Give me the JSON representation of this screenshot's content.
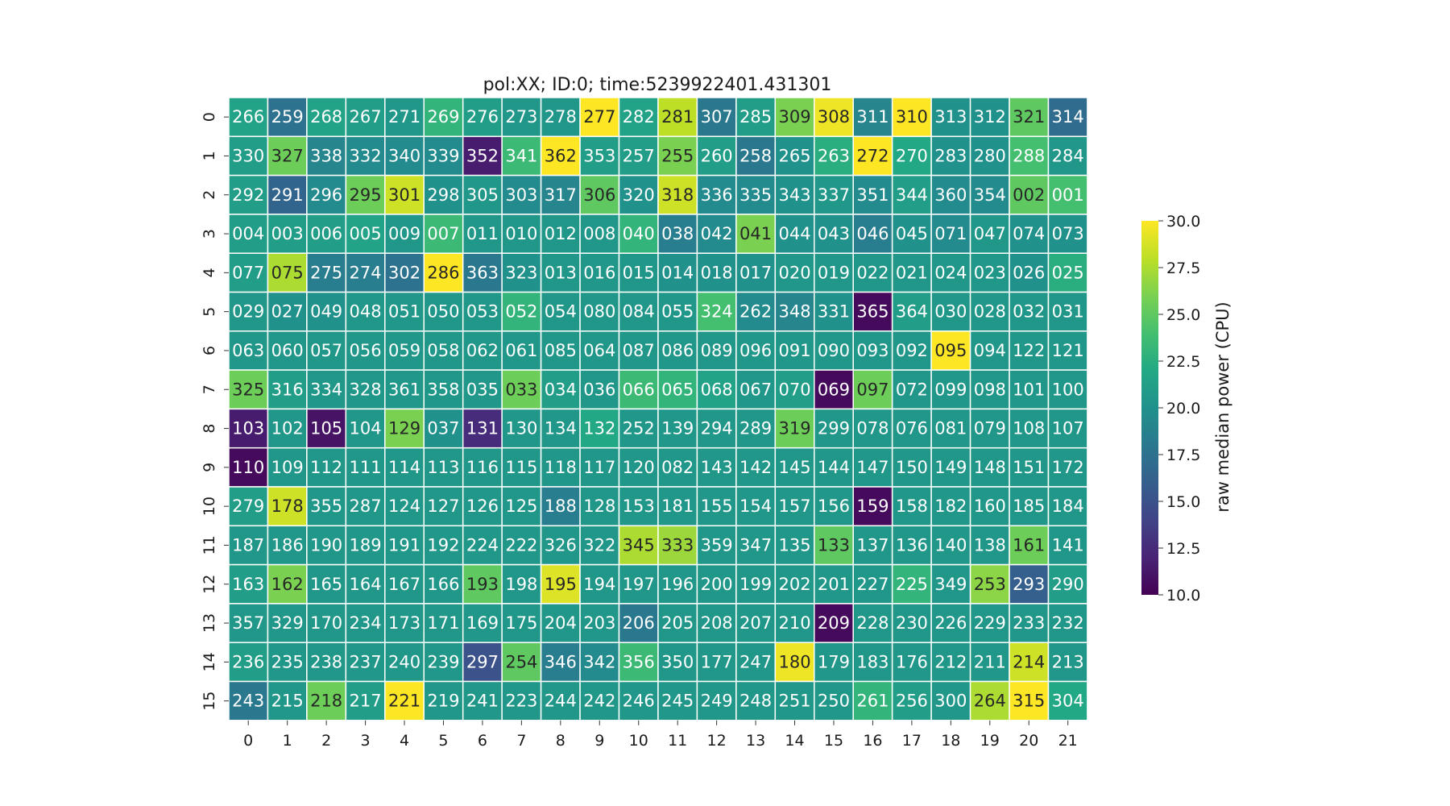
{
  "chart_data": {
    "type": "heatmap",
    "title": "pol:XX; ID:0; time:5239922401.431301",
    "colorbar_label": "raw median power (CPU)",
    "colorbar_ticks": [
      "10.0",
      "12.5",
      "15.0",
      "17.5",
      "20.0",
      "22.5",
      "25.0",
      "27.5",
      "30.0"
    ],
    "vmin": 10.0,
    "vmax": 30.0,
    "colormap": "viridis",
    "x_tick_labels": [
      "0",
      "1",
      "2",
      "3",
      "4",
      "5",
      "6",
      "7",
      "8",
      "9",
      "10",
      "11",
      "12",
      "13",
      "14",
      "15",
      "16",
      "17",
      "18",
      "19",
      "20",
      "21"
    ],
    "y_tick_labels": [
      "0",
      "1",
      "2",
      "3",
      "4",
      "5",
      "6",
      "7",
      "8",
      "9",
      "10",
      "11",
      "12",
      "13",
      "14",
      "15"
    ],
    "annotations": [
      [
        "266",
        "259",
        "268",
        "267",
        "271",
        "269",
        "276",
        "273",
        "278",
        "277",
        "282",
        "281",
        "307",
        "285",
        "309",
        "308",
        "311",
        "310",
        "313",
        "312",
        "321",
        "314"
      ],
      [
        "330",
        "327",
        "338",
        "332",
        "340",
        "339",
        "352",
        "341",
        "362",
        "353",
        "257",
        "255",
        "260",
        "258",
        "265",
        "263",
        "272",
        "270",
        "283",
        "280",
        "288",
        "284"
      ],
      [
        "292",
        "291",
        "296",
        "295",
        "301",
        "298",
        "305",
        "303",
        "317",
        "306",
        "320",
        "318",
        "336",
        "335",
        "343",
        "337",
        "351",
        "344",
        "360",
        "354",
        "002",
        "001"
      ],
      [
        "004",
        "003",
        "006",
        "005",
        "009",
        "007",
        "011",
        "010",
        "012",
        "008",
        "040",
        "038",
        "042",
        "041",
        "044",
        "043",
        "046",
        "045",
        "071",
        "047",
        "074",
        "073"
      ],
      [
        "077",
        "075",
        "275",
        "274",
        "302",
        "286",
        "363",
        "323",
        "013",
        "016",
        "015",
        "014",
        "018",
        "017",
        "020",
        "019",
        "022",
        "021",
        "024",
        "023",
        "026",
        "025"
      ],
      [
        "029",
        "027",
        "049",
        "048",
        "051",
        "050",
        "053",
        "052",
        "054",
        "080",
        "084",
        "055",
        "324",
        "262",
        "348",
        "331",
        "365",
        "364",
        "030",
        "028",
        "032",
        "031"
      ],
      [
        "063",
        "060",
        "057",
        "056",
        "059",
        "058",
        "062",
        "061",
        "085",
        "064",
        "087",
        "086",
        "089",
        "096",
        "091",
        "090",
        "093",
        "092",
        "095",
        "094",
        "122",
        "121"
      ],
      [
        "325",
        "316",
        "334",
        "328",
        "361",
        "358",
        "035",
        "033",
        "034",
        "036",
        "066",
        "065",
        "068",
        "067",
        "070",
        "069",
        "097",
        "072",
        "099",
        "098",
        "101",
        "100"
      ],
      [
        "103",
        "102",
        "105",
        "104",
        "129",
        "037",
        "131",
        "130",
        "134",
        "132",
        "252",
        "139",
        "294",
        "289",
        "319",
        "299",
        "078",
        "076",
        "081",
        "079",
        "108",
        "107"
      ],
      [
        "110",
        "109",
        "112",
        "111",
        "114",
        "113",
        "116",
        "115",
        "118",
        "117",
        "120",
        "082",
        "143",
        "142",
        "145",
        "144",
        "147",
        "150",
        "149",
        "148",
        "151",
        "172"
      ],
      [
        "279",
        "178",
        "355",
        "287",
        "124",
        "127",
        "126",
        "125",
        "188",
        "128",
        "153",
        "181",
        "155",
        "154",
        "157",
        "156",
        "159",
        "158",
        "182",
        "160",
        "185",
        "184"
      ],
      [
        "187",
        "186",
        "190",
        "189",
        "191",
        "192",
        "224",
        "222",
        "326",
        "322",
        "345",
        "333",
        "359",
        "347",
        "135",
        "133",
        "137",
        "136",
        "140",
        "138",
        "161",
        "141"
      ],
      [
        "163",
        "162",
        "165",
        "164",
        "167",
        "166",
        "193",
        "198",
        "195",
        "194",
        "197",
        "196",
        "200",
        "199",
        "202",
        "201",
        "227",
        "225",
        "349",
        "253",
        "293",
        "290"
      ],
      [
        "357",
        "329",
        "170",
        "234",
        "173",
        "171",
        "169",
        "175",
        "204",
        "203",
        "206",
        "205",
        "208",
        "207",
        "210",
        "209",
        "228",
        "230",
        "226",
        "229",
        "233",
        "232"
      ],
      [
        "236",
        "235",
        "238",
        "237",
        "240",
        "239",
        "297",
        "254",
        "346",
        "342",
        "356",
        "350",
        "177",
        "247",
        "180",
        "179",
        "183",
        "176",
        "212",
        "211",
        "214",
        "213"
      ],
      [
        "243",
        "215",
        "218",
        "217",
        "221",
        "219",
        "241",
        "223",
        "244",
        "242",
        "246",
        "245",
        "249",
        "248",
        "251",
        "250",
        "261",
        "256",
        "300",
        "264",
        "315",
        "304"
      ]
    ],
    "values": [
      [
        21.5,
        17.5,
        21.5,
        21.0,
        20.5,
        23.0,
        21.0,
        20.5,
        20.5,
        30.0,
        21.5,
        28.0,
        18.0,
        21.0,
        26.0,
        29.5,
        19.0,
        30.0,
        20.0,
        20.0,
        25.0,
        17.0
      ],
      [
        21.0,
        25.5,
        19.0,
        19.5,
        19.5,
        19.5,
        11.5,
        23.5,
        30.0,
        21.0,
        21.0,
        26.0,
        21.0,
        18.0,
        20.0,
        22.5,
        30.0,
        22.0,
        20.0,
        20.0,
        24.0,
        20.5
      ],
      [
        21.0,
        16.5,
        19.5,
        25.5,
        28.5,
        20.0,
        20.5,
        19.5,
        19.0,
        25.0,
        20.0,
        28.5,
        19.5,
        19.5,
        20.0,
        20.5,
        19.5,
        21.0,
        19.5,
        19.5,
        25.0,
        24.0
      ],
      [
        21.0,
        21.0,
        21.0,
        21.5,
        20.5,
        23.5,
        20.5,
        20.5,
        20.5,
        20.5,
        23.0,
        18.5,
        19.5,
        26.0,
        20.0,
        20.0,
        18.5,
        20.0,
        19.5,
        20.5,
        20.0,
        20.0
      ],
      [
        21.0,
        27.5,
        18.5,
        18.5,
        17.5,
        30.0,
        18.0,
        20.0,
        20.5,
        20.5,
        20.5,
        20.0,
        20.0,
        20.0,
        20.5,
        20.5,
        20.5,
        20.5,
        20.5,
        20.5,
        20.0,
        22.5
      ],
      [
        20.5,
        20.0,
        20.0,
        20.5,
        20.5,
        20.5,
        20.5,
        23.0,
        20.5,
        20.5,
        20.5,
        20.5,
        24.0,
        19.5,
        19.0,
        20.0,
        10.5,
        21.0,
        20.5,
        20.5,
        20.5,
        20.5
      ],
      [
        20.5,
        20.5,
        20.5,
        20.5,
        20.5,
        20.5,
        20.5,
        20.5,
        20.5,
        20.5,
        20.5,
        20.5,
        20.5,
        20.5,
        20.5,
        20.5,
        20.5,
        20.5,
        30.0,
        20.5,
        20.5,
        20.5
      ],
      [
        25.5,
        21.0,
        20.5,
        20.5,
        20.5,
        20.5,
        20.5,
        25.5,
        21.0,
        20.5,
        23.5,
        23.0,
        21.5,
        20.5,
        21.0,
        10.5,
        25.5,
        20.5,
        20.5,
        20.5,
        20.5,
        20.5
      ],
      [
        11.5,
        20.5,
        11.0,
        20.5,
        26.0,
        20.0,
        12.5,
        20.5,
        20.5,
        22.0,
        20.5,
        20.5,
        20.5,
        20.5,
        25.5,
        20.5,
        20.5,
        20.5,
        20.5,
        20.5,
        20.5,
        20.5
      ],
      [
        10.5,
        20.5,
        20.5,
        20.5,
        20.5,
        20.5,
        20.5,
        20.5,
        20.5,
        20.5,
        20.5,
        20.5,
        20.5,
        20.5,
        20.5,
        20.5,
        20.5,
        20.5,
        20.5,
        20.5,
        20.5,
        20.5
      ],
      [
        21.0,
        28.5,
        20.5,
        20.5,
        20.5,
        20.5,
        20.5,
        20.5,
        18.5,
        20.5,
        20.5,
        20.5,
        20.5,
        20.5,
        20.5,
        20.5,
        10.5,
        20.5,
        20.5,
        20.5,
        20.5,
        20.5
      ],
      [
        20.5,
        20.5,
        20.5,
        20.5,
        20.5,
        20.5,
        20.5,
        20.5,
        20.5,
        20.5,
        27.5,
        27.0,
        20.5,
        20.5,
        20.5,
        25.0,
        20.5,
        20.5,
        20.5,
        20.5,
        25.5,
        20.5
      ],
      [
        21.0,
        26.0,
        20.5,
        20.5,
        20.5,
        20.5,
        25.0,
        20.5,
        29.0,
        20.5,
        20.5,
        20.5,
        20.5,
        20.5,
        20.5,
        20.5,
        20.5,
        23.0,
        20.5,
        26.5,
        16.0,
        21.0
      ],
      [
        20.5,
        20.5,
        20.5,
        20.5,
        20.5,
        20.5,
        20.5,
        20.5,
        20.5,
        20.5,
        18.0,
        20.5,
        20.5,
        20.5,
        20.5,
        10.5,
        20.5,
        20.5,
        20.5,
        20.5,
        20.5,
        20.5
      ],
      [
        21.0,
        20.5,
        20.5,
        20.5,
        20.5,
        20.5,
        15.0,
        25.0,
        18.5,
        19.5,
        23.5,
        20.5,
        20.5,
        20.5,
        29.5,
        20.5,
        20.5,
        20.5,
        20.5,
        20.5,
        28.5,
        20.5
      ],
      [
        18.0,
        20.5,
        25.5,
        21.0,
        30.0,
        20.5,
        20.5,
        20.5,
        20.5,
        20.5,
        20.5,
        20.5,
        20.5,
        20.5,
        20.5,
        20.5,
        23.0,
        21.0,
        20.5,
        27.5,
        30.0,
        22.0
      ]
    ]
  }
}
